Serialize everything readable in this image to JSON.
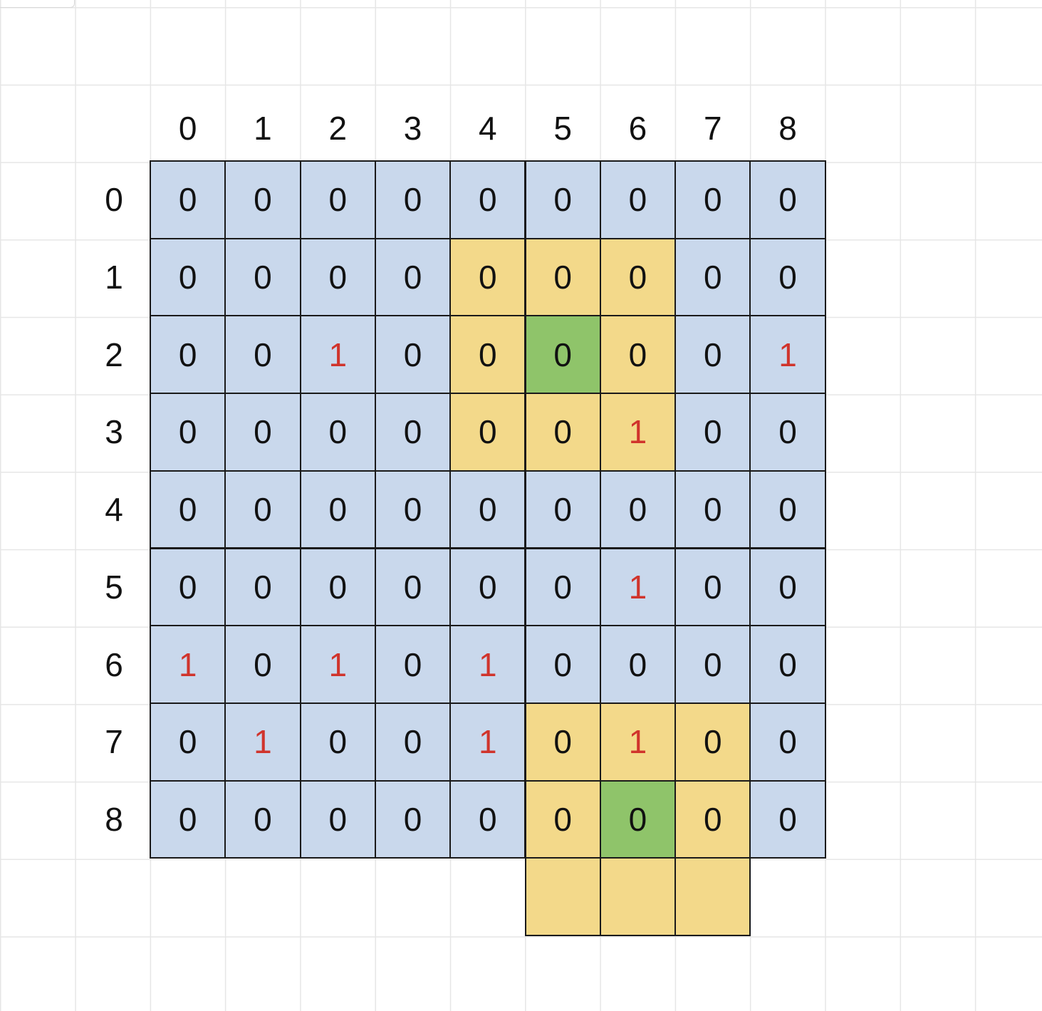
{
  "column_labels": [
    "0",
    "1",
    "2",
    "3",
    "4",
    "5",
    "6",
    "7",
    "8"
  ],
  "row_labels": [
    "0",
    "1",
    "2",
    "3",
    "4",
    "5",
    "6",
    "7",
    "8"
  ],
  "grid": [
    [
      "0",
      "0",
      "0",
      "0",
      "0",
      "0",
      "0",
      "0",
      "0"
    ],
    [
      "0",
      "0",
      "0",
      "0",
      "0",
      "0",
      "0",
      "0",
      "0"
    ],
    [
      "0",
      "0",
      "1",
      "0",
      "0",
      "0",
      "0",
      "0",
      "1"
    ],
    [
      "0",
      "0",
      "0",
      "0",
      "0",
      "0",
      "1",
      "0",
      "0"
    ],
    [
      "0",
      "0",
      "0",
      "0",
      "0",
      "0",
      "0",
      "0",
      "0"
    ],
    [
      "0",
      "0",
      "0",
      "0",
      "0",
      "0",
      "1",
      "0",
      "0"
    ],
    [
      "1",
      "0",
      "1",
      "0",
      "1",
      "0",
      "0",
      "0",
      "0"
    ],
    [
      "0",
      "1",
      "0",
      "0",
      "1",
      "0",
      "1",
      "0",
      "0"
    ],
    [
      "0",
      "0",
      "0",
      "0",
      "0",
      "0",
      "0",
      "0",
      "0"
    ]
  ],
  "highlights": {
    "neighborhood_cells": [
      [
        1,
        4
      ],
      [
        1,
        5
      ],
      [
        1,
        6
      ],
      [
        2,
        4
      ],
      [
        2,
        6
      ],
      [
        3,
        4
      ],
      [
        3,
        5
      ],
      [
        3,
        6
      ],
      [
        7,
        5
      ],
      [
        7,
        6
      ],
      [
        7,
        7
      ],
      [
        8,
        5
      ],
      [
        8,
        7
      ],
      [
        9,
        5
      ],
      [
        9,
        6
      ],
      [
        9,
        7
      ]
    ],
    "center_cells": [
      [
        2,
        5
      ],
      [
        8,
        6
      ]
    ]
  },
  "colors": {
    "base_cell": "#c9d8ec",
    "neighborhood_cell": "#f3d98a",
    "center_cell": "#8fc46a",
    "one_value": "#d0342c",
    "zero_value": "#111111",
    "cell_border": "#1a1a1a"
  }
}
